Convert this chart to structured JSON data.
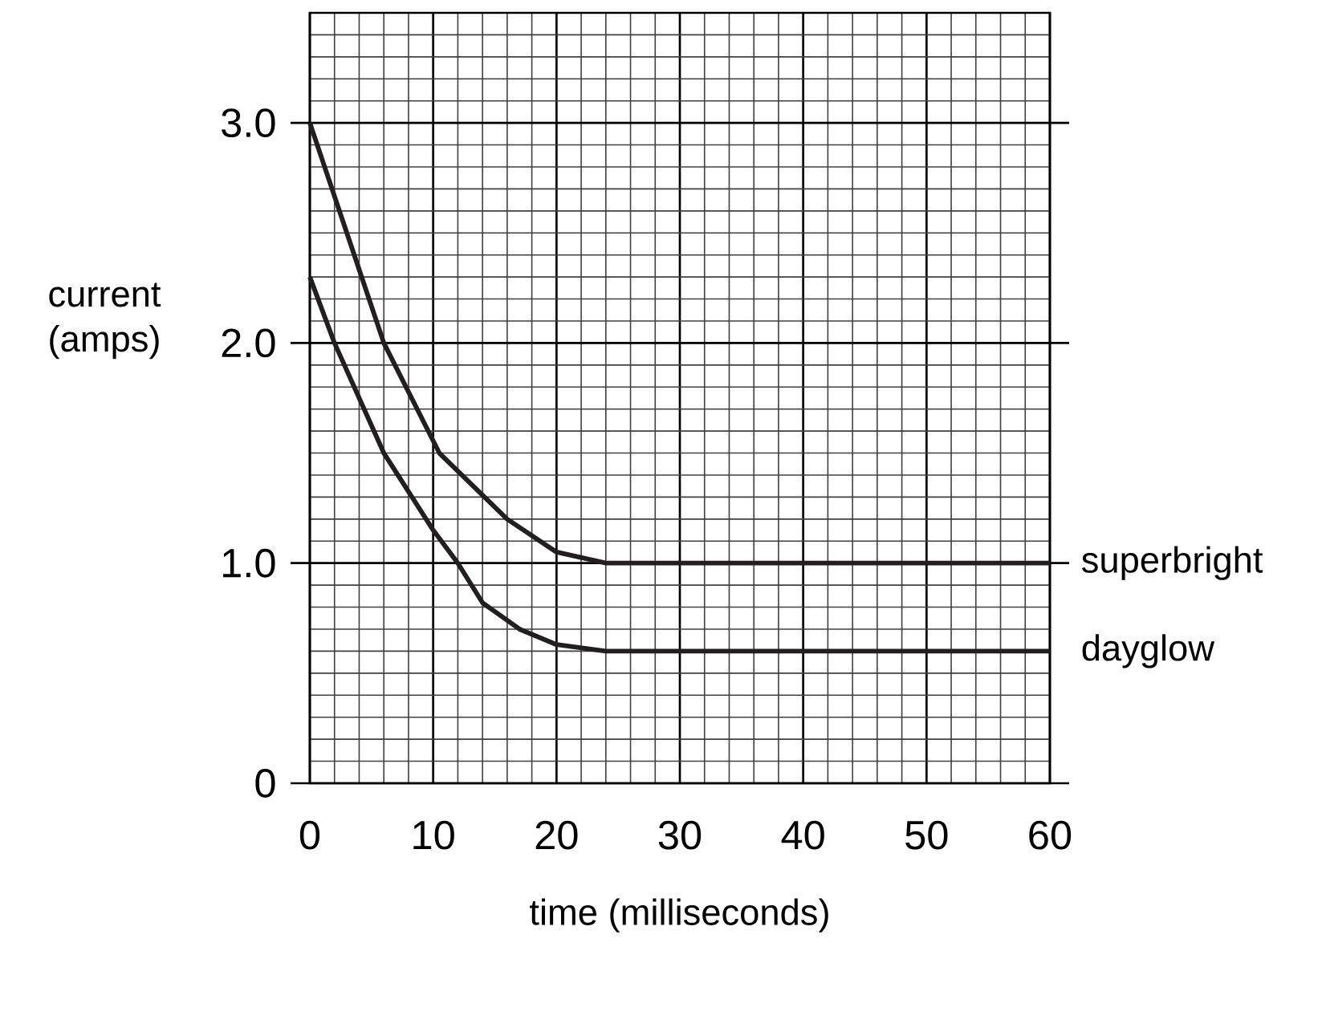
{
  "chart_data": {
    "type": "line",
    "xlabel": "time (milliseconds)",
    "ylabel": "current (amps)",
    "xlim": [
      0,
      60
    ],
    "ylim": [
      0,
      3.5
    ],
    "xticks": [
      0,
      10,
      20,
      30,
      40,
      50,
      60
    ],
    "yticks": [
      0,
      {
        "value": 1,
        "label": "1.0"
      },
      {
        "value": 2,
        "label": "2.0"
      },
      {
        "value": 3,
        "label": "3.0"
      }
    ],
    "grid": true,
    "marker": "none",
    "line_style": "solid",
    "series": [
      {
        "name": "superbright",
        "color": "#231f20",
        "x": [
          0,
          3,
          6,
          10.5,
          16,
          20,
          24,
          60
        ],
        "values": [
          3.0,
          2.5,
          2.0,
          1.5,
          1.2,
          1.05,
          1.0,
          1.0
        ]
      },
      {
        "name": "dayglow",
        "color": "#231f20",
        "x": [
          0,
          2,
          6,
          10,
          12,
          14,
          17,
          20,
          24,
          60
        ],
        "values": [
          2.3,
          2.0,
          1.5,
          1.15,
          1.0,
          0.82,
          0.7,
          0.63,
          0.6,
          0.6
        ]
      }
    ]
  }
}
